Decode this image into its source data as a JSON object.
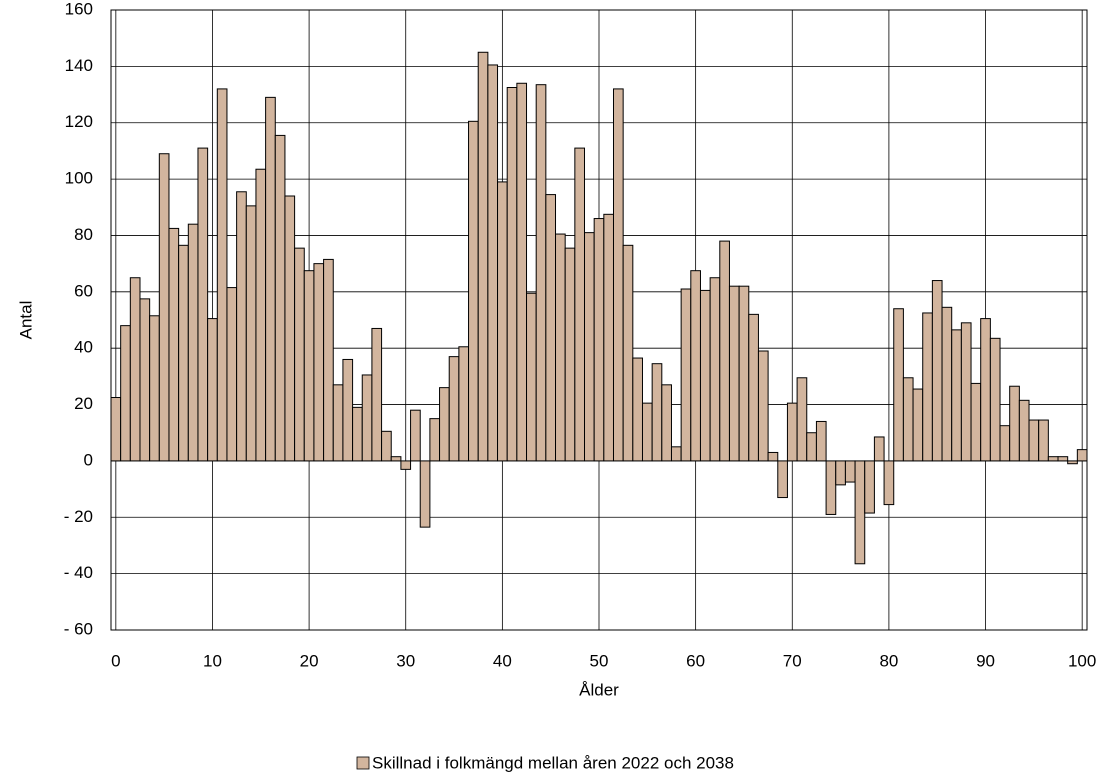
{
  "chart_data": {
    "type": "bar",
    "series": [
      {
        "name": "Skillnad i folkmängd mellan åren 2022 och 2038",
        "color": "#d2b59e",
        "values": [
          22.5,
          48,
          65,
          57.5,
          51.5,
          109,
          82.5,
          76.5,
          84,
          111,
          50.5,
          132,
          61.5,
          95.5,
          90.5,
          103.5,
          129,
          115.5,
          94,
          75.5,
          67.5,
          70,
          71.5,
          27,
          36,
          19,
          30.5,
          47,
          10.5,
          1.5,
          -3,
          18,
          -23.5,
          15,
          26,
          37,
          40.5,
          120.5,
          145,
          140.5,
          99,
          132.5,
          134,
          59.5,
          133.5,
          94.5,
          80.5,
          75.5,
          111,
          81,
          86,
          87.5,
          132,
          76.5,
          36.5,
          20.5,
          34.5,
          27,
          5,
          61,
          67.5,
          60.5,
          65,
          78,
          62,
          62,
          52,
          39,
          3,
          -13,
          20.5,
          29.5,
          10,
          14,
          -19,
          -8.5,
          -7.5,
          -36.5,
          -18.5,
          8.5,
          -15.5,
          54,
          29.5,
          25.5,
          52.5,
          64,
          54.5,
          46.5,
          49,
          27.5,
          50.5,
          43.5,
          12.5,
          26.5,
          21.5,
          14.5,
          14.5,
          1.5,
          1.5,
          -1,
          4
        ]
      }
    ],
    "x": [
      0,
      1,
      2,
      3,
      4,
      5,
      6,
      7,
      8,
      9,
      10,
      11,
      12,
      13,
      14,
      15,
      16,
      17,
      18,
      19,
      20,
      21,
      22,
      23,
      24,
      25,
      26,
      27,
      28,
      29,
      30,
      31,
      32,
      33,
      34,
      35,
      36,
      37,
      38,
      39,
      40,
      41,
      42,
      43,
      44,
      45,
      46,
      47,
      48,
      49,
      50,
      51,
      52,
      53,
      54,
      55,
      56,
      57,
      58,
      59,
      60,
      61,
      62,
      63,
      64,
      65,
      66,
      67,
      68,
      69,
      70,
      71,
      72,
      73,
      74,
      75,
      76,
      77,
      78,
      79,
      80,
      81,
      82,
      83,
      84,
      85,
      86,
      87,
      88,
      89,
      90,
      91,
      92,
      93,
      94,
      95,
      96,
      97,
      98,
      99,
      100
    ],
    "x_label": "Ålder",
    "y_label": "Antal",
    "xlim": [
      -0.5,
      100.5
    ],
    "xticks": [
      0,
      10,
      20,
      30,
      40,
      50,
      60,
      70,
      80,
      90,
      100
    ],
    "ylim": [
      -60,
      160
    ],
    "yticks": [
      {
        "value": -60,
        "label": "- 60"
      },
      {
        "value": -40,
        "label": "- 40"
      },
      {
        "value": -20,
        "label": "- 20"
      },
      0,
      20,
      40,
      60,
      80,
      100,
      120,
      140,
      160
    ],
    "grid": true,
    "legend": "bottom"
  }
}
